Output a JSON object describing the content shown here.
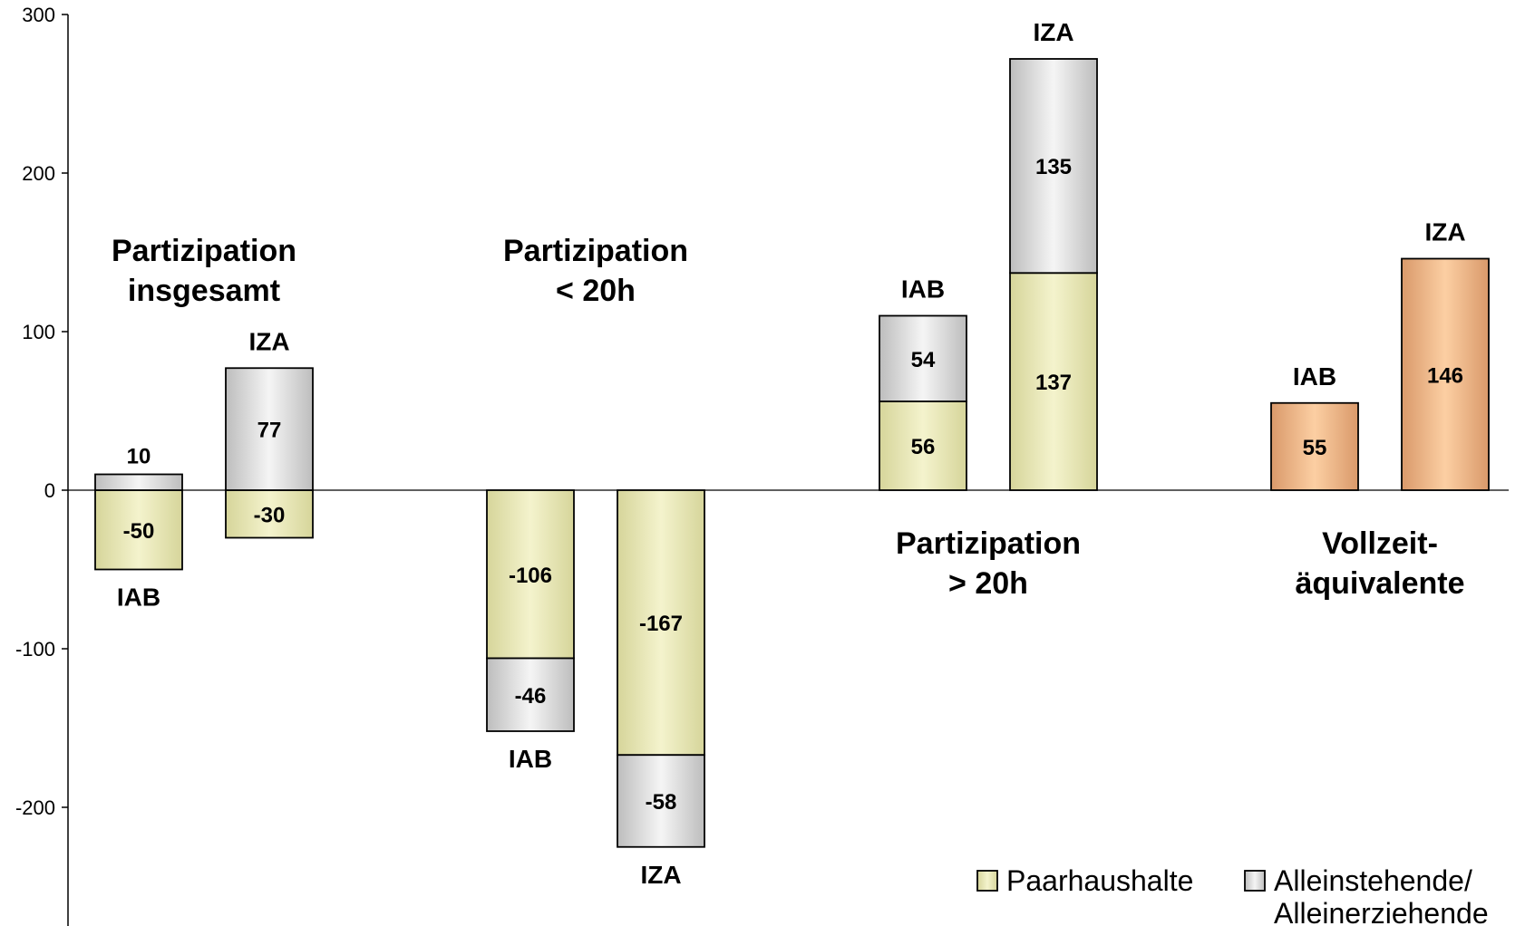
{
  "chart_data": {
    "type": "bar",
    "stacked": true,
    "ylim": [
      -275,
      300
    ],
    "yticks": [
      300,
      200,
      100,
      0,
      -100,
      -200
    ],
    "grid": false,
    "legend_position": "bottom-right",
    "colors": {
      "paarhaushalte": "#ecebb7",
      "alleinstehende": "#e2e2e2",
      "vollzeit": "#f3c093"
    },
    "legend": [
      {
        "key": "paarhaushalte",
        "label": "Paarhaushalte"
      },
      {
        "key": "alleinstehende",
        "label": "Alleinstehende/\nAlleinerziehende"
      }
    ],
    "groups": [
      {
        "title": "Partizipation\ninsgesamt",
        "bars": [
          {
            "source": "IAB",
            "segments": [
              {
                "series": "paarhaushalte",
                "value": -50
              },
              {
                "series": "alleinstehende",
                "value": 10
              }
            ]
          },
          {
            "source": "IZA",
            "segments": [
              {
                "series": "paarhaushalte",
                "value": -30
              },
              {
                "series": "alleinstehende",
                "value": 77
              }
            ]
          }
        ]
      },
      {
        "title": "Partizipation\n< 20h",
        "bars": [
          {
            "source": "IAB",
            "segments": [
              {
                "series": "paarhaushalte",
                "value": -106
              },
              {
                "series": "alleinstehende",
                "value": -46
              }
            ]
          },
          {
            "source": "IZA",
            "segments": [
              {
                "series": "paarhaushalte",
                "value": -167
              },
              {
                "series": "alleinstehende",
                "value": -58
              }
            ]
          }
        ]
      },
      {
        "title": "Partizipation\n> 20h",
        "bars": [
          {
            "source": "IAB",
            "segments": [
              {
                "series": "paarhaushalte",
                "value": 56
              },
              {
                "series": "alleinstehende",
                "value": 54
              }
            ]
          },
          {
            "source": "IZA",
            "segments": [
              {
                "series": "paarhaushalte",
                "value": 137
              },
              {
                "series": "alleinstehende",
                "value": 135
              }
            ]
          }
        ]
      },
      {
        "title": "Vollzeit-\näquivalente",
        "bars": [
          {
            "source": "IAB",
            "segments": [
              {
                "series": "vollzeit",
                "value": 55
              }
            ]
          },
          {
            "source": "IZA",
            "segments": [
              {
                "series": "vollzeit",
                "value": 146
              }
            ]
          }
        ]
      }
    ]
  }
}
